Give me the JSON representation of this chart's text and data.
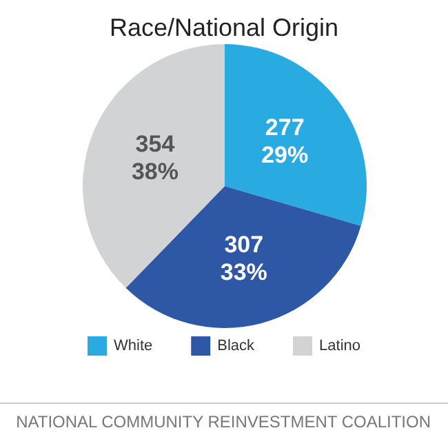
{
  "chart_data": {
    "type": "pie",
    "title": "Race/National Origin",
    "categories": [
      "White",
      "Black",
      "Latino"
    ],
    "values": [
      277,
      307,
      354
    ],
    "colors": [
      "#29abe2",
      "#2e58a6",
      "#d1d3d4"
    ],
    "value_labels": [
      "277\n29%",
      "307\n33%",
      "354\n38%"
    ],
    "legend": "bottom",
    "annotations": [
      "NATIONAL COMMUNITY REINVESTMENT COALITION"
    ]
  }
}
